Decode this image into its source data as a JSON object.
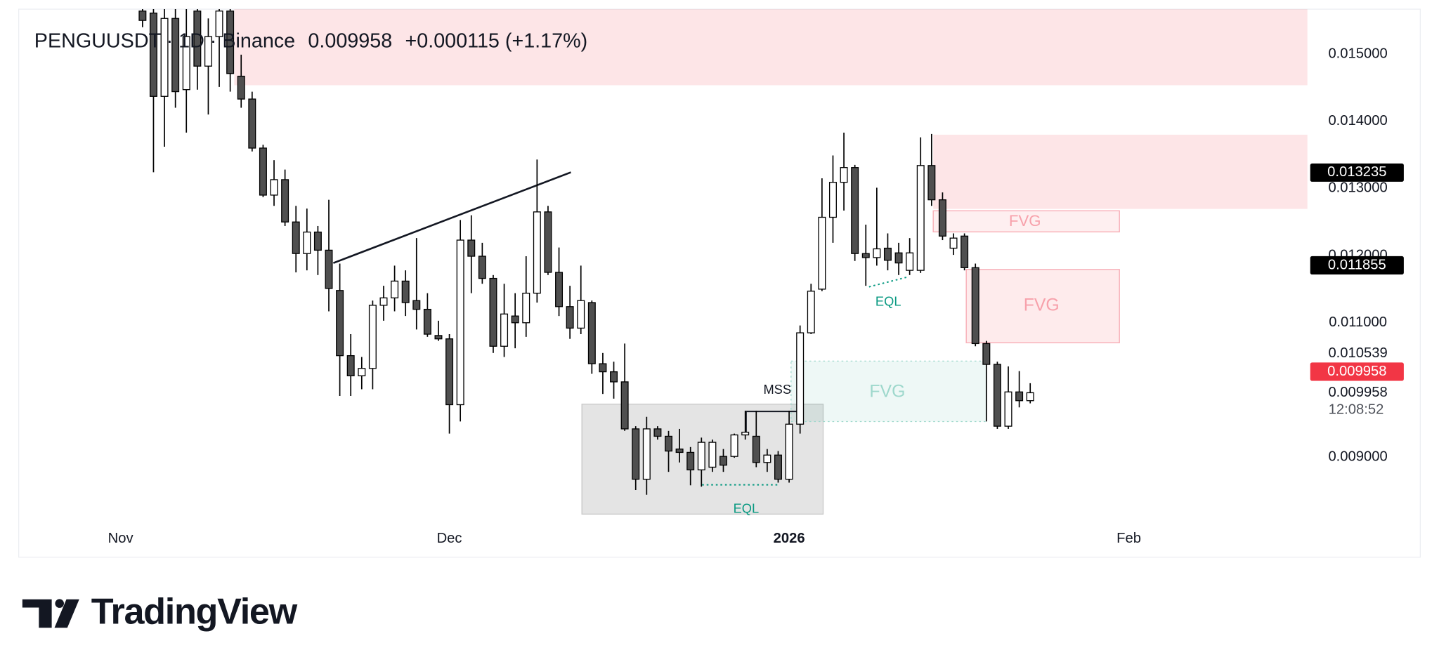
{
  "header": {
    "title": "PENGUUSDT · 1D · Binance",
    "price": "0.009958",
    "change": "+0.000115 (+1.17%)"
  },
  "chart_data": {
    "type": "candlestick",
    "categories": [
      null,
      null,
      null,
      null,
      null,
      null,
      null,
      null,
      null,
      null,
      null,
      null,
      null,
      null,
      null,
      null,
      null,
      null,
      null,
      null,
      null,
      null,
      null,
      null,
      null,
      null,
      null,
      null,
      null,
      null,
      null,
      null,
      null,
      null,
      null,
      null,
      null,
      null,
      null,
      null,
      null,
      null,
      null,
      null,
      null,
      null,
      null,
      null,
      null,
      null,
      null,
      null,
      null,
      null,
      null,
      null,
      null,
      null,
      null,
      null,
      null,
      null,
      null,
      null,
      null,
      null,
      null,
      null,
      null,
      null,
      null,
      null,
      null,
      null,
      null,
      null,
      null,
      null,
      null,
      null,
      null,
      null
    ],
    "open": [
      0.01564,
      0.01561,
      0.01437,
      0.01553,
      0.01447,
      0.01564,
      0.01482,
      0.01526,
      0.01564,
      0.01467,
      0.01433,
      0.0136,
      0.0129,
      0.01313,
      0.0125,
      0.01203,
      0.01235,
      0.01208,
      0.01148,
      0.01051,
      0.01021,
      0.01032,
      0.01126,
      0.01137,
      0.01162,
      0.01133,
      0.0112,
      0.01081,
      0.01076,
      0.00978,
      0.01223,
      0.01199,
      0.01166,
      0.01065,
      0.0111,
      0.011,
      0.01144,
      0.01265,
      0.01175,
      0.01124,
      0.01092,
      0.0113,
      0.01039,
      0.01027,
      0.01012,
      0.00942,
      0.00867,
      0.00942,
      0.00931,
      0.00912,
      0.00907,
      0.00881,
      0.00885,
      0.00901,
      0.00901,
      0.00933,
      0.00931,
      0.00892,
      0.00903,
      0.00867,
      0.00949,
      0.01085,
      0.0115,
      0.01257,
      0.01309,
      0.01331,
      0.01203,
      0.01197,
      0.01211,
      0.01204,
      0.01178,
      0.01178,
      0.01334,
      0.01283,
      0.01211,
      0.01229,
      0.01182,
      0.01069,
      0.01038,
      0.00946,
      0.00997,
      0.00984
    ],
    "high": [
      0.01567,
      0.01567,
      0.01567,
      0.01567,
      0.01567,
      0.01567,
      0.01553,
      0.01567,
      0.01567,
      0.01499,
      0.01444,
      0.01365,
      0.01342,
      0.01328,
      0.01274,
      0.0127,
      0.01244,
      0.01283,
      0.01188,
      0.01083,
      0.01049,
      0.01133,
      0.01155,
      0.01185,
      0.01178,
      0.01226,
      0.01144,
      0.01103,
      0.01083,
      0.01253,
      0.0126,
      0.01219,
      0.01171,
      0.01158,
      0.01144,
      0.01199,
      0.01343,
      0.01274,
      0.01212,
      0.01155,
      0.01185,
      0.01133,
      0.01055,
      0.01042,
      0.01069,
      0.00946,
      0.0096,
      0.00946,
      0.00939,
      0.00942,
      0.00915,
      0.00929,
      0.00926,
      0.00912,
      0.00935,
      0.00969,
      0.00969,
      0.00912,
      0.00909,
      0.00969,
      0.01096,
      0.01158,
      0.01315,
      0.01349,
      0.01383,
      0.01335,
      0.01246,
      0.01301,
      0.01233,
      0.01219,
      0.01226,
      0.01376,
      0.01381,
      0.01294,
      0.01233,
      0.01233,
      0.01188,
      0.01073,
      0.01042,
      0.01035,
      0.01028,
      0.0101
    ],
    "low": [
      0.0154,
      0.01324,
      0.01362,
      0.0142,
      0.01383,
      0.01447,
      0.0141,
      0.01451,
      0.01444,
      0.0142,
      0.01355,
      0.01287,
      0.01274,
      0.01244,
      0.01175,
      0.01178,
      0.01171,
      0.01117,
      0.00991,
      0.00991,
      0.01001,
      0.01001,
      0.01103,
      0.01117,
      0.0111,
      0.0109,
      0.01079,
      0.01073,
      0.00935,
      0.00953,
      0.01144,
      0.01158,
      0.01055,
      0.01049,
      0.01062,
      0.01079,
      0.0113,
      0.01171,
      0.0111,
      0.01076,
      0.01083,
      0.01024,
      0.00994,
      0.00987,
      0.00939,
      0.00851,
      0.00844,
      0.00926,
      0.00878,
      0.00892,
      0.00858,
      0.00856,
      0.00878,
      0.00878,
      0.00899,
      0.00926,
      0.00885,
      0.00878,
      0.00862,
      0.00862,
      0.00935,
      0.01083,
      0.01147,
      0.01219,
      0.01267,
      0.01192,
      0.01155,
      0.01185,
      0.01178,
      0.01171,
      0.01171,
      0.01174,
      0.01274,
      0.01223,
      0.01201,
      0.01178,
      0.01065,
      0.00953,
      0.00942,
      0.00942,
      0.00974,
      0.0098
    ],
    "close": [
      0.0155,
      0.01437,
      0.01553,
      0.01444,
      0.01526,
      0.01482,
      0.01526,
      0.01564,
      0.01471,
      0.01433,
      0.0136,
      0.0129,
      0.01313,
      0.0125,
      0.01203,
      0.01235,
      0.01208,
      0.01151,
      0.01051,
      0.01021,
      0.01032,
      0.01126,
      0.01137,
      0.01162,
      0.0113,
      0.0112,
      0.01083,
      0.01076,
      0.00978,
      0.01223,
      0.01199,
      0.01166,
      0.01065,
      0.01113,
      0.011,
      0.01144,
      0.01265,
      0.01175,
      0.01124,
      0.01092,
      0.01133,
      0.01039,
      0.01027,
      0.01012,
      0.00942,
      0.00867,
      0.00942,
      0.00931,
      0.00909,
      0.00907,
      0.00881,
      0.00922,
      0.00922,
      0.00888,
      0.00933,
      0.00937,
      0.00892,
      0.00903,
      0.00867,
      0.00949,
      0.01085,
      0.01147,
      0.01257,
      0.01309,
      0.01331,
      0.01203,
      0.01197,
      0.0121,
      0.01193,
      0.01189,
      0.01204,
      0.01334,
      0.01283,
      0.01229,
      0.01226,
      0.01182,
      0.01069,
      0.01038,
      0.00946,
      0.00997,
      0.00984,
      0.009958
    ],
    "up_color": "#ffffff",
    "down_color": "#4f4f4f",
    "wick_color": "#000000",
    "xlim": [
      -11.3,
      106.3
    ],
    "xticks": [
      {
        "value": -2,
        "label": "Nov"
      },
      {
        "value": 28,
        "label": "Dec"
      },
      {
        "value": 59,
        "label": "2026"
      },
      {
        "value": 90,
        "label": "Feb"
      }
    ],
    "ylim": [
      0.00796,
      0.015668
    ],
    "yticks": [
      {
        "value": 0.015,
        "label": "0.015000"
      },
      {
        "value": 0.014,
        "label": "0.014000"
      },
      {
        "value": 0.013,
        "label": "0.013000"
      },
      {
        "value": 0.012,
        "label": "0.012000"
      },
      {
        "value": 0.011,
        "label": "0.011000"
      },
      {
        "value": 0.009,
        "label": "0.009000"
      }
    ],
    "grid": false,
    "level_labels": [
      0.013235,
      0.011855
    ],
    "plain_labels": [
      0.010539,
      0.009958
    ],
    "last_price": 0.009958,
    "last_price_color": "#f23645",
    "countdown": "12:08:52",
    "annotations": {
      "fvg_1": "FVG",
      "fvg_2": "FVG",
      "fvg_3": "FVG",
      "eql_1": "EQL",
      "eql_2": "EQL",
      "mss": "MSS"
    }
  },
  "footer": {
    "brand": "TradingView"
  }
}
